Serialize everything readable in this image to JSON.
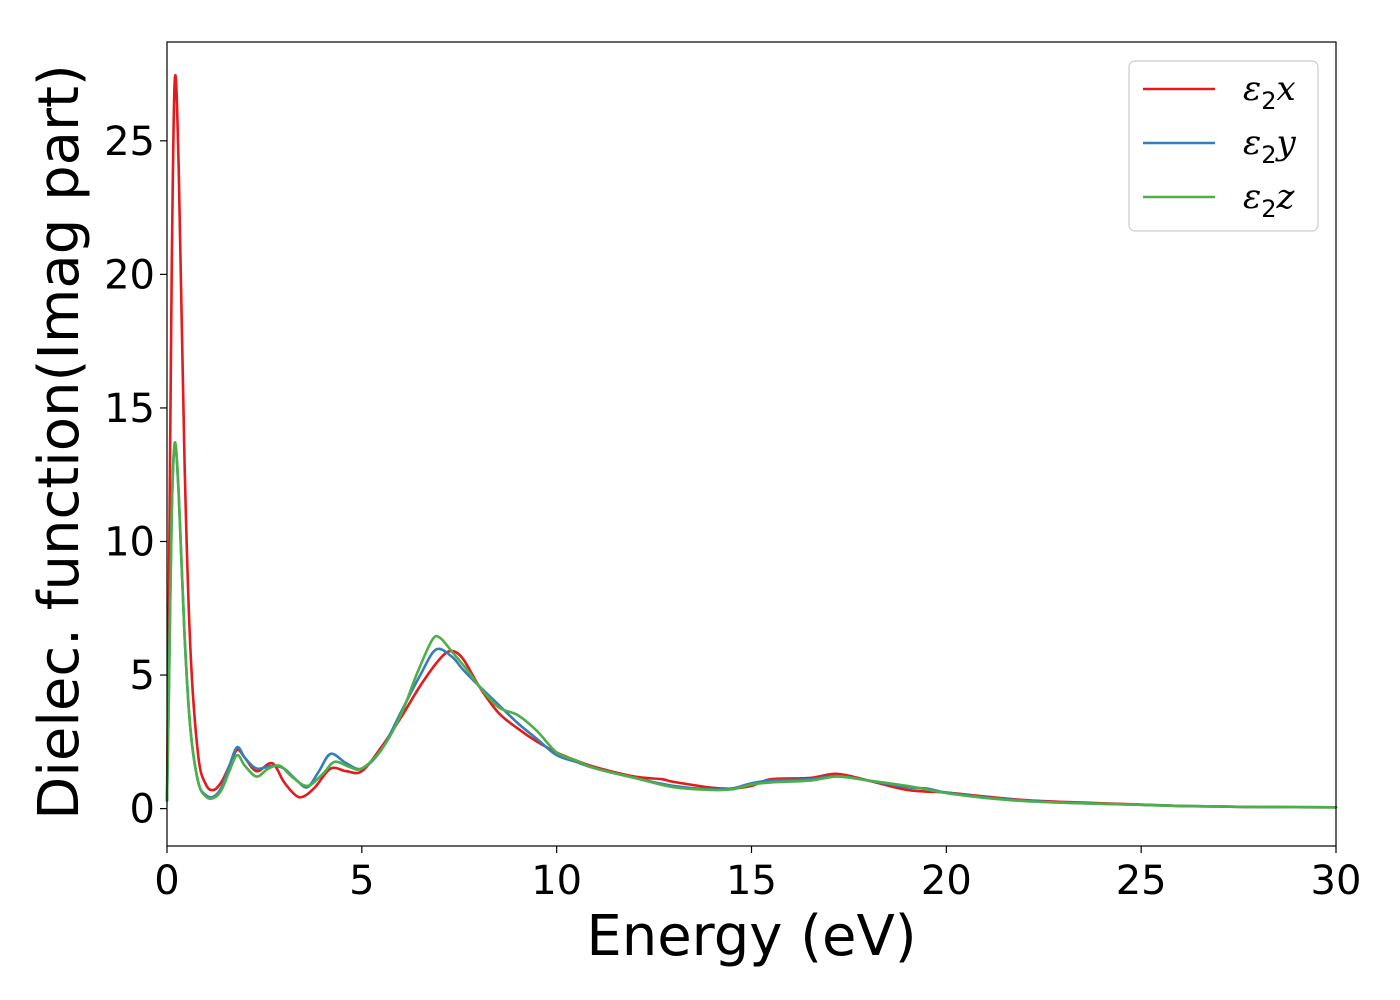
{
  "chart_data": {
    "type": "line",
    "title": "",
    "xlabel": "Energy (eV)",
    "ylabel": "Dielec. function(Imag part)",
    "xlim": [
      0,
      30
    ],
    "ylim": [
      -1.4,
      28.7
    ],
    "xticks": [
      0,
      5,
      10,
      15,
      20,
      25,
      30
    ],
    "yticks": [
      0,
      5,
      10,
      15,
      20,
      25
    ],
    "grid": false,
    "legend_position": "top-right",
    "series": [
      {
        "name": "ε2x",
        "legend_base": "ε",
        "legend_sub": "2",
        "legend_suffix": "x",
        "color": "#e41a1c",
        "x": [
          0,
          0.05,
          0.12,
          0.2,
          0.3,
          0.45,
          0.6,
          0.8,
          1.0,
          1.2,
          1.4,
          1.6,
          1.8,
          2.0,
          2.3,
          2.7,
          3.0,
          3.3,
          3.5,
          3.8,
          4.2,
          4.6,
          5.0,
          5.5,
          6.0,
          6.5,
          7.0,
          7.3,
          7.6,
          8.0,
          8.5,
          9.0,
          9.5,
          10.0,
          10.5,
          11.0,
          12.0,
          12.7,
          13.0,
          14.0,
          14.5,
          15.0,
          15.5,
          16.5,
          17.2,
          18.0,
          19.0,
          20.0,
          21.0,
          22.0,
          23.0,
          24.0,
          25.0,
          26.0,
          27.0,
          28.0,
          30.0
        ],
        "y": [
          0.3,
          8.0,
          20.0,
          27.3,
          24.0,
          13.0,
          6.0,
          2.0,
          0.9,
          0.7,
          1.0,
          1.6,
          2.2,
          1.9,
          1.4,
          1.7,
          1.0,
          0.5,
          0.45,
          0.8,
          1.5,
          1.4,
          1.4,
          2.3,
          3.4,
          4.6,
          5.6,
          5.9,
          5.6,
          4.6,
          3.6,
          3.0,
          2.5,
          2.1,
          1.8,
          1.55,
          1.2,
          1.1,
          1.0,
          0.78,
          0.75,
          0.85,
          1.1,
          1.15,
          1.3,
          1.05,
          0.7,
          0.6,
          0.45,
          0.32,
          0.25,
          0.2,
          0.15,
          0.1,
          0.08,
          0.06,
          0.05
        ]
      },
      {
        "name": "ε2y",
        "legend_base": "ε",
        "legend_sub": "2",
        "legend_suffix": "y",
        "color": "#377eb8",
        "x": [
          0,
          0.05,
          0.12,
          0.2,
          0.3,
          0.45,
          0.6,
          0.8,
          1.0,
          1.2,
          1.4,
          1.6,
          1.8,
          2.0,
          2.3,
          2.7,
          3.0,
          3.3,
          3.6,
          3.9,
          4.2,
          4.6,
          5.0,
          5.5,
          6.0,
          6.5,
          6.9,
          7.3,
          7.6,
          8.0,
          8.5,
          9.0,
          9.5,
          10.0,
          10.5,
          11.0,
          12.0,
          13.0,
          14.0,
          14.5,
          15.0,
          15.5,
          16.5,
          17.2,
          18.0,
          19.0,
          19.5,
          20.0,
          21.0,
          22.0,
          23.0,
          24.0,
          25.0,
          26.0,
          27.0,
          28.0,
          30.0
        ],
        "y": [
          0.3,
          4.5,
          11.0,
          13.6,
          11.8,
          6.5,
          3.0,
          1.0,
          0.5,
          0.45,
          0.8,
          1.6,
          2.3,
          1.9,
          1.5,
          1.6,
          1.5,
          1.1,
          0.8,
          1.4,
          2.05,
          1.7,
          1.5,
          2.2,
          3.6,
          5.0,
          5.95,
          5.7,
          5.2,
          4.6,
          3.9,
          3.2,
          2.6,
          2.0,
          1.75,
          1.5,
          1.15,
          0.85,
          0.72,
          0.75,
          0.95,
          1.05,
          1.1,
          1.22,
          1.05,
          0.8,
          0.75,
          0.6,
          0.42,
          0.3,
          0.22,
          0.18,
          0.14,
          0.1,
          0.08,
          0.06,
          0.05
        ]
      },
      {
        "name": "ε2z",
        "legend_base": "ε",
        "legend_sub": "2",
        "legend_suffix": "z",
        "color": "#4daf4a",
        "x": [
          0,
          0.05,
          0.12,
          0.2,
          0.3,
          0.45,
          0.6,
          0.8,
          1.0,
          1.2,
          1.4,
          1.6,
          1.8,
          2.0,
          2.3,
          2.6,
          2.9,
          3.2,
          3.6,
          4.0,
          4.3,
          4.7,
          5.0,
          5.5,
          6.0,
          6.4,
          6.8,
          7.0,
          7.3,
          7.7,
          8.0,
          8.5,
          9.0,
          9.5,
          10.0,
          10.5,
          11.0,
          12.0,
          13.0,
          14.0,
          14.5,
          15.0,
          15.5,
          16.5,
          17.2,
          18.0,
          19.0,
          20.0,
          21.0,
          22.0,
          23.0,
          24.0,
          25.0,
          26.0,
          27.0,
          28.0,
          30.0
        ],
        "y": [
          0.3,
          4.5,
          11.0,
          13.7,
          11.8,
          6.5,
          3.0,
          1.0,
          0.45,
          0.4,
          0.7,
          1.4,
          2.0,
          1.6,
          1.2,
          1.5,
          1.6,
          1.2,
          0.85,
          1.3,
          1.75,
          1.55,
          1.5,
          2.2,
          3.5,
          5.0,
          6.3,
          6.4,
          5.9,
          5.2,
          4.6,
          3.8,
          3.5,
          2.9,
          2.1,
          1.8,
          1.5,
          1.15,
          0.8,
          0.7,
          0.72,
          0.9,
          0.98,
          1.05,
          1.2,
          1.05,
          0.85,
          0.58,
          0.4,
          0.28,
          0.22,
          0.18,
          0.14,
          0.1,
          0.08,
          0.06,
          0.05
        ]
      }
    ]
  }
}
